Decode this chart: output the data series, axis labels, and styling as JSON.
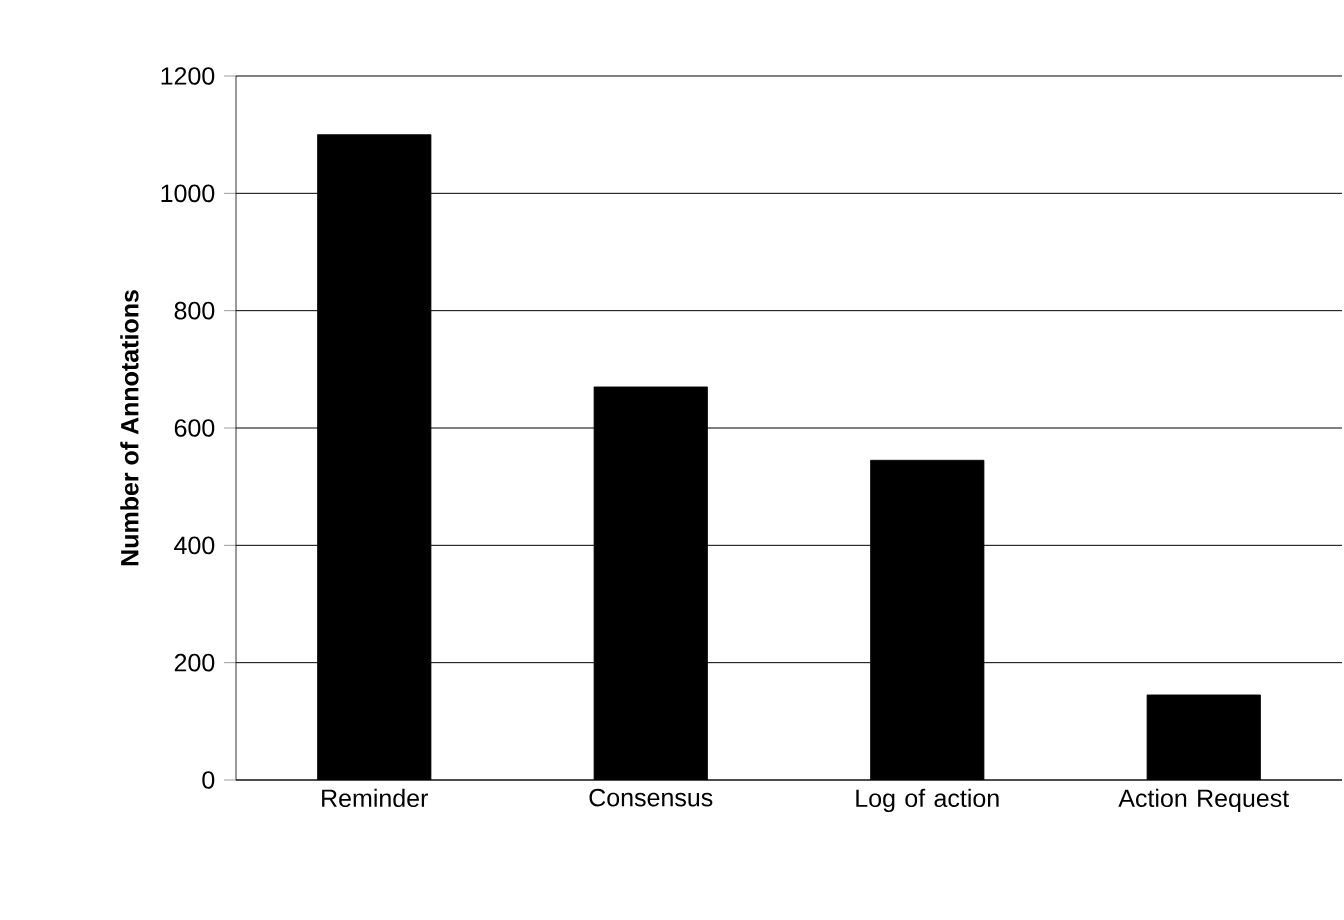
{
  "chart_data": {
    "type": "bar",
    "ylabel": "Number of Annotations",
    "categories": [
      "Reminder",
      "Consensus",
      "Log of action",
      "Action Request"
    ],
    "values": [
      1100,
      670,
      545,
      145
    ],
    "color": "#000000",
    "ylim": [
      0,
      1200
    ],
    "yticks": [
      0,
      200,
      400,
      600,
      800,
      1000,
      1200
    ],
    "grid": "y"
  }
}
